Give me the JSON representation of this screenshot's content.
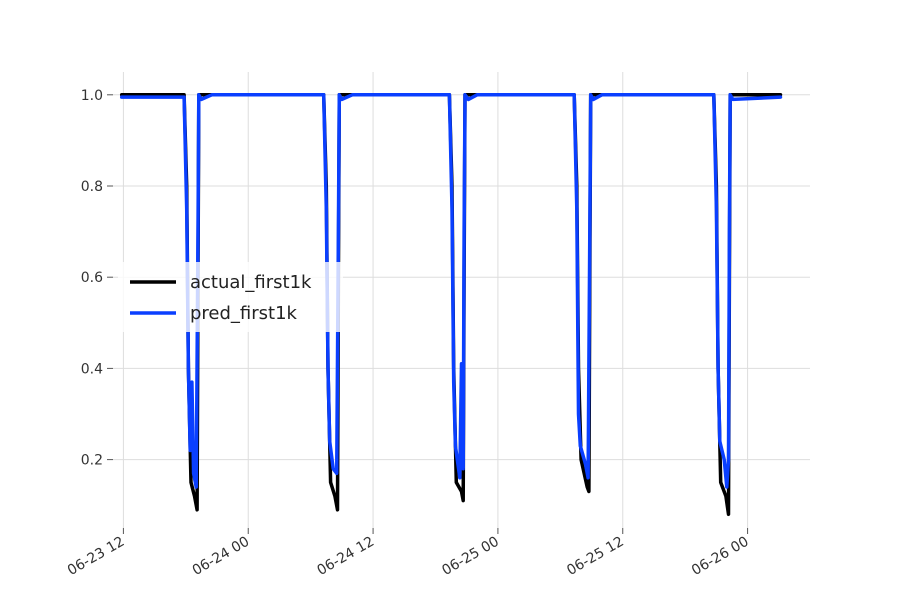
{
  "chart_data": {
    "type": "line",
    "title": "",
    "xlabel": "",
    "ylabel": "",
    "grid": true,
    "legend_placement": "center-left",
    "x_axis_type": "datetime",
    "xlim": [
      "2023-06-23T11:00",
      "2023-06-26T06:00"
    ],
    "ylim": [
      0.05,
      1.05
    ],
    "x_ticks": [
      {
        "value": "2023-06-23T12:00",
        "label": "06-23 12"
      },
      {
        "value": "2023-06-24T00:00",
        "label": "06-24 00"
      },
      {
        "value": "2023-06-24T12:00",
        "label": "06-24 12"
      },
      {
        "value": "2023-06-25T00:00",
        "label": "06-25 00"
      },
      {
        "value": "2023-06-25T12:00",
        "label": "06-25 12"
      },
      {
        "value": "2023-06-26T00:00",
        "label": "06-26 00"
      }
    ],
    "y_ticks": [
      {
        "value": 0.2,
        "label": "0.2"
      },
      {
        "value": 0.4,
        "label": "0.4"
      },
      {
        "value": 0.6,
        "label": "0.6"
      },
      {
        "value": 0.8,
        "label": "0.8"
      },
      {
        "value": 1.0,
        "label": "1.0"
      }
    ],
    "series": [
      {
        "name": "actual_first1k",
        "color": "#000000",
        "points": [
          [
            "2023-06-23T11:50",
            1.0
          ],
          [
            "2023-06-23T17:50",
            1.0
          ],
          [
            "2023-06-23T18:05",
            0.8
          ],
          [
            "2023-06-23T18:15",
            0.4
          ],
          [
            "2023-06-23T18:30",
            0.15
          ],
          [
            "2023-06-23T18:50",
            0.12
          ],
          [
            "2023-06-23T19:05",
            0.09
          ],
          [
            "2023-06-23T19:10",
            0.6
          ],
          [
            "2023-06-23T19:15",
            1.0
          ],
          [
            "2023-06-24T07:15",
            1.0
          ],
          [
            "2023-06-24T07:30",
            0.8
          ],
          [
            "2023-06-24T07:40",
            0.4
          ],
          [
            "2023-06-24T07:55",
            0.15
          ],
          [
            "2023-06-24T08:20",
            0.12
          ],
          [
            "2023-06-24T08:35",
            0.09
          ],
          [
            "2023-06-24T08:40",
            0.6
          ],
          [
            "2023-06-24T08:45",
            1.0
          ],
          [
            "2023-06-24T19:20",
            1.0
          ],
          [
            "2023-06-24T19:35",
            0.8
          ],
          [
            "2023-06-24T19:45",
            0.4
          ],
          [
            "2023-06-24T20:00",
            0.15
          ],
          [
            "2023-06-24T20:30",
            0.13
          ],
          [
            "2023-06-24T20:40",
            0.11
          ],
          [
            "2023-06-24T20:45",
            0.6
          ],
          [
            "2023-06-24T20:50",
            1.0
          ],
          [
            "2023-06-25T07:20",
            1.0
          ],
          [
            "2023-06-25T07:35",
            0.8
          ],
          [
            "2023-06-25T07:45",
            0.4
          ],
          [
            "2023-06-25T08:00",
            0.2
          ],
          [
            "2023-06-25T08:35",
            0.14
          ],
          [
            "2023-06-25T08:45",
            0.13
          ],
          [
            "2023-06-25T08:50",
            0.6
          ],
          [
            "2023-06-25T08:55",
            1.0
          ],
          [
            "2023-06-25T20:45",
            1.0
          ],
          [
            "2023-06-25T21:00",
            0.8
          ],
          [
            "2023-06-25T21:10",
            0.4
          ],
          [
            "2023-06-25T21:25",
            0.15
          ],
          [
            "2023-06-25T21:55",
            0.12
          ],
          [
            "2023-06-25T22:10",
            0.08
          ],
          [
            "2023-06-25T22:15",
            0.6
          ],
          [
            "2023-06-25T22:20",
            1.0
          ],
          [
            "2023-06-26T03:10",
            1.0
          ]
        ]
      },
      {
        "name": "pred_first1k",
        "color": "#0a3fff",
        "points": [
          [
            "2023-06-23T11:50",
            0.995
          ],
          [
            "2023-06-23T17:50",
            0.995
          ],
          [
            "2023-06-23T18:05",
            0.75
          ],
          [
            "2023-06-23T18:15",
            0.4
          ],
          [
            "2023-06-23T18:25",
            0.22
          ],
          [
            "2023-06-23T18:35",
            0.37
          ],
          [
            "2023-06-23T18:45",
            0.17
          ],
          [
            "2023-06-23T19:00",
            0.14
          ],
          [
            "2023-06-23T19:10",
            0.7
          ],
          [
            "2023-06-23T19:15",
            1.0
          ],
          [
            "2023-06-23T19:30",
            0.99
          ],
          [
            "2023-06-23T20:30",
            1.0
          ],
          [
            "2023-06-24T07:15",
            1.0
          ],
          [
            "2023-06-24T07:30",
            0.75
          ],
          [
            "2023-06-24T07:40",
            0.4
          ],
          [
            "2023-06-24T07:50",
            0.24
          ],
          [
            "2023-06-24T08:10",
            0.18
          ],
          [
            "2023-06-24T08:30",
            0.17
          ],
          [
            "2023-06-24T08:40",
            0.7
          ],
          [
            "2023-06-24T08:45",
            1.0
          ],
          [
            "2023-06-24T09:00",
            0.99
          ],
          [
            "2023-06-24T10:00",
            1.0
          ],
          [
            "2023-06-24T19:20",
            1.0
          ],
          [
            "2023-06-24T19:35",
            0.75
          ],
          [
            "2023-06-24T19:45",
            0.37
          ],
          [
            "2023-06-24T19:55",
            0.23
          ],
          [
            "2023-06-24T20:20",
            0.16
          ],
          [
            "2023-06-24T20:30",
            0.41
          ],
          [
            "2023-06-24T20:40",
            0.18
          ],
          [
            "2023-06-24T20:45",
            0.7
          ],
          [
            "2023-06-24T20:50",
            1.0
          ],
          [
            "2023-06-24T21:10",
            0.99
          ],
          [
            "2023-06-24T22:00",
            1.0
          ],
          [
            "2023-06-25T07:20",
            1.0
          ],
          [
            "2023-06-25T07:35",
            0.75
          ],
          [
            "2023-06-25T07:45",
            0.3
          ],
          [
            "2023-06-25T07:55",
            0.23
          ],
          [
            "2023-06-25T08:25",
            0.19
          ],
          [
            "2023-06-25T08:40",
            0.16
          ],
          [
            "2023-06-25T08:50",
            0.7
          ],
          [
            "2023-06-25T08:55",
            1.0
          ],
          [
            "2023-06-25T09:10",
            0.99
          ],
          [
            "2023-06-25T10:00",
            1.0
          ],
          [
            "2023-06-25T20:45",
            1.0
          ],
          [
            "2023-06-25T21:00",
            0.75
          ],
          [
            "2023-06-25T21:10",
            0.4
          ],
          [
            "2023-06-25T21:20",
            0.24
          ],
          [
            "2023-06-25T21:45",
            0.2
          ],
          [
            "2023-06-25T22:00",
            0.14
          ],
          [
            "2023-06-25T22:10",
            0.2
          ],
          [
            "2023-06-25T22:15",
            0.7
          ],
          [
            "2023-06-25T22:20",
            1.0
          ],
          [
            "2023-06-25T22:35",
            0.99
          ],
          [
            "2023-06-26T03:10",
            0.995
          ]
        ]
      }
    ]
  }
}
